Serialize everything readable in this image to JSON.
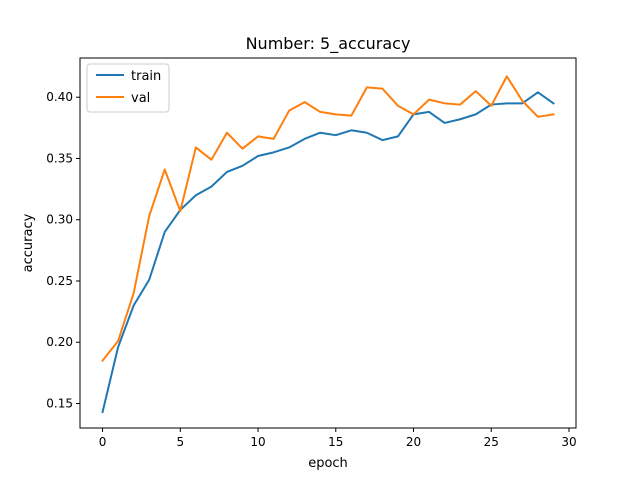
{
  "chart_data": {
    "type": "line",
    "title": "Number: 5_accuracy",
    "xlabel": "epoch",
    "ylabel": "accuracy",
    "xlim": [
      -1.45,
      30.45
    ],
    "ylim": [
      0.13,
      0.432
    ],
    "xticks": [
      0,
      5,
      10,
      15,
      20,
      25,
      30
    ],
    "yticks": [
      0.15,
      0.2,
      0.25,
      0.3,
      0.35,
      0.4
    ],
    "ytick_labels": [
      "0.15",
      "0.20",
      "0.25",
      "0.30",
      "0.35",
      "0.40"
    ],
    "grid": false,
    "legend_position": "top-left",
    "x": [
      0,
      1,
      2,
      3,
      4,
      5,
      6,
      7,
      8,
      9,
      10,
      11,
      12,
      13,
      14,
      15,
      16,
      17,
      18,
      19,
      20,
      21,
      22,
      23,
      24,
      25,
      26,
      27,
      28,
      29
    ],
    "series": [
      {
        "name": "train",
        "color": "#1f77b4",
        "values": [
          0.143,
          0.196,
          0.23,
          0.251,
          0.29,
          0.308,
          0.32,
          0.327,
          0.339,
          0.344,
          0.352,
          0.355,
          0.359,
          0.366,
          0.371,
          0.369,
          0.373,
          0.371,
          0.365,
          0.368,
          0.386,
          0.388,
          0.379,
          0.382,
          0.386,
          0.394,
          0.395,
          0.395,
          0.404,
          0.395
        ]
      },
      {
        "name": "val",
        "color": "#ff7f0e",
        "values": [
          0.185,
          0.201,
          0.24,
          0.303,
          0.341,
          0.307,
          0.359,
          0.349,
          0.371,
          0.358,
          0.368,
          0.366,
          0.389,
          0.396,
          0.388,
          0.386,
          0.385,
          0.408,
          0.407,
          0.393,
          0.386,
          0.398,
          0.395,
          0.394,
          0.405,
          0.393,
          0.417,
          0.397,
          0.384,
          0.386
        ]
      }
    ]
  }
}
